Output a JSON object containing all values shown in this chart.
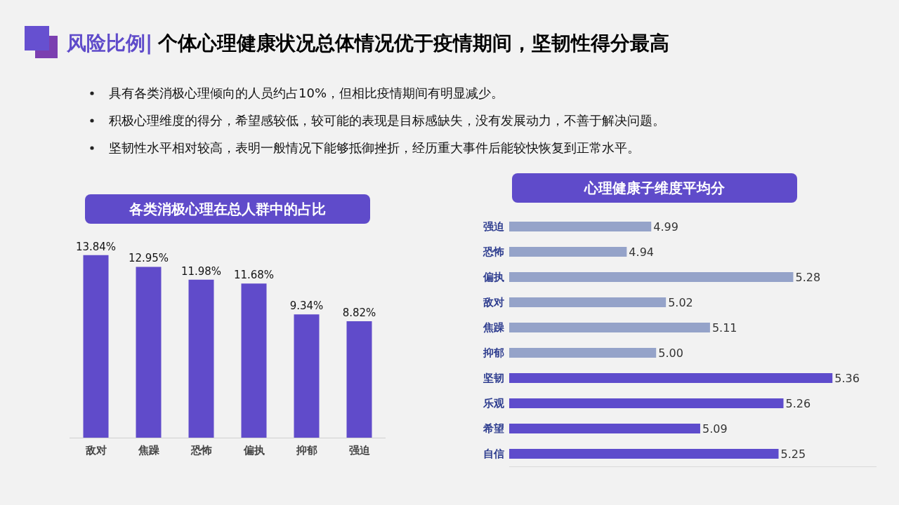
{
  "chart_data": [
    {
      "type": "other",
      "title": "风险比例|",
      "subtitle": "个体心理健康状况总体情况优于疫情期间，坚韧性得分最高",
      "annotations": [
        "具有各类消极心理倾向的人员约占10%，但相比疫情期间有明显减少。",
        "积极心理维度的得分，希望感较低，较可能的表现是目标感缺失，没有发展动力，不善于解决问题。",
        "坚韧性水平相对较高，表明一般情况下能够抵御挫折，经历重大事件后能较快恢复到正常水平。"
      ]
    },
    {
      "type": "bar",
      "title": "各类消极心理在总人群中的占比",
      "categories": [
        "敌对",
        "焦躁",
        "恐怖",
        "偏执",
        "抑郁",
        "强迫"
      ],
      "values": [
        13.84,
        12.95,
        11.98,
        11.68,
        9.34,
        8.82
      ],
      "value_labels": [
        "13.84%",
        "12.95%",
        "11.98%",
        "11.68%",
        "9.34%",
        "8.82%"
      ],
      "color": "#604bca",
      "tick_labels": "x"
    },
    {
      "type": "bar",
      "orientation": "horizontal",
      "title": "心理健康子维度平均分",
      "categories": [
        "强迫",
        "恐怖",
        "偏执",
        "敌对",
        "焦躁",
        "抑郁",
        "坚韧",
        "乐观",
        "希望",
        "自信"
      ],
      "values": [
        4.99,
        4.94,
        5.28,
        5.02,
        5.11,
        5.0,
        5.36,
        5.26,
        5.09,
        5.25
      ],
      "value_labels": [
        "4.99",
        "4.94",
        "5.28",
        "5.02",
        "5.11",
        "5.00",
        "5.36",
        "5.26",
        "5.09",
        "5.25"
      ],
      "colors": [
        "#95a3c9",
        "#95a3c9",
        "#95a3c9",
        "#95a3c9",
        "#95a3c9",
        "#95a3c9",
        "#5e4ccc",
        "#5e4ccc",
        "#5e4ccc",
        "#5e4ccc"
      ],
      "xlim": [
        4.7,
        5.45
      ],
      "tick_labels": "y"
    }
  ]
}
